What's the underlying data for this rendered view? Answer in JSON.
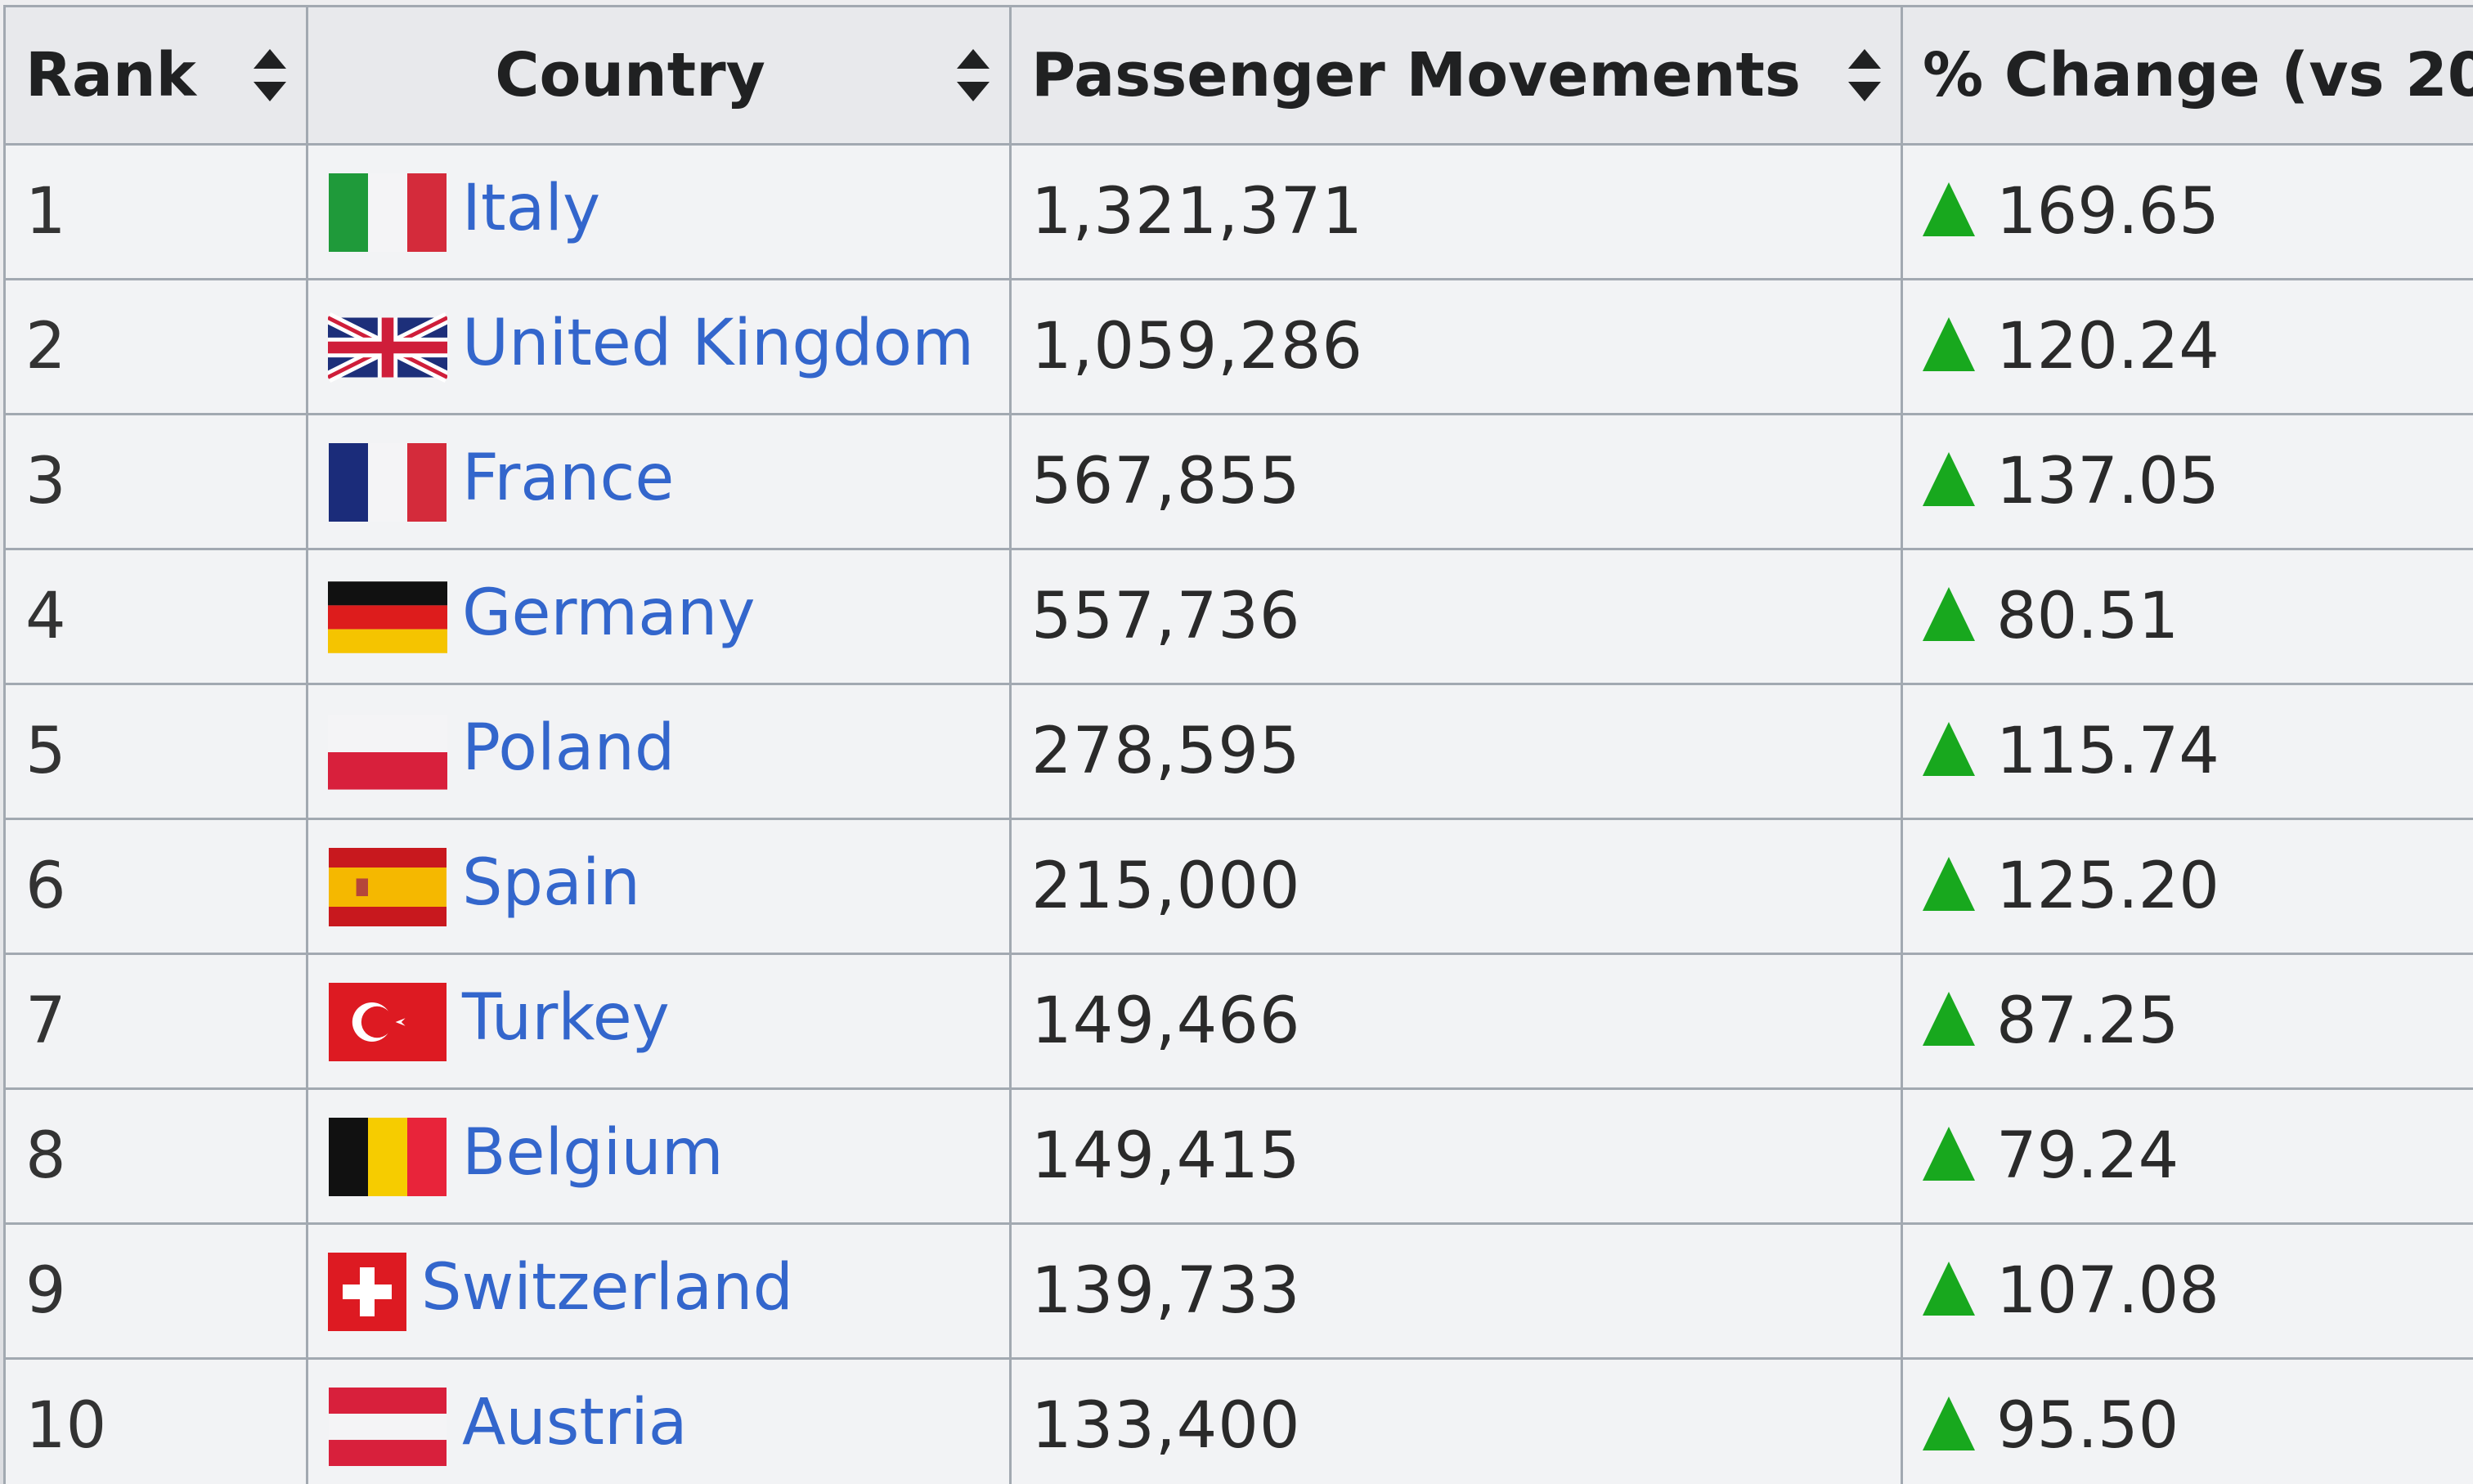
{
  "table": {
    "headers": {
      "rank": "Rank",
      "country": "Country",
      "passengers": "Passenger Movements",
      "change": "% Change (vs 20"
    },
    "rows": [
      {
        "rank": "1",
        "country": "Italy",
        "flag": "italy-flag",
        "passengers": "1,321,371",
        "change": "169.65"
      },
      {
        "rank": "2",
        "country": "United Kingdom",
        "flag": "uk-flag",
        "passengers": "1,059,286",
        "change": "120.24"
      },
      {
        "rank": "3",
        "country": "France",
        "flag": "france-flag",
        "passengers": "567,855",
        "change": "137.05"
      },
      {
        "rank": "4",
        "country": "Germany",
        "flag": "germany-flag",
        "passengers": "557,736",
        "change": "80.51"
      },
      {
        "rank": "5",
        "country": "Poland",
        "flag": "poland-flag",
        "passengers": "278,595",
        "change": "115.74"
      },
      {
        "rank": "6",
        "country": "Spain",
        "flag": "spain-flag",
        "passengers": "215,000",
        "change": "125.20"
      },
      {
        "rank": "7",
        "country": "Turkey",
        "flag": "turkey-flag",
        "passengers": "149,466",
        "change": "87.25"
      },
      {
        "rank": "8",
        "country": "Belgium",
        "flag": "belgium-flag",
        "passengers": "149,415",
        "change": "79.24"
      },
      {
        "rank": "9",
        "country": "Switzerland",
        "flag": "switzerland-flag",
        "passengers": "139,733",
        "change": "107.08"
      },
      {
        "rank": "10",
        "country": "Austria",
        "flag": "austria-flag",
        "passengers": "133,400",
        "change": "95.50"
      }
    ]
  },
  "colors": {
    "link": "#3366cc",
    "increase": "#18a81e",
    "border": "#a2a9b1"
  }
}
